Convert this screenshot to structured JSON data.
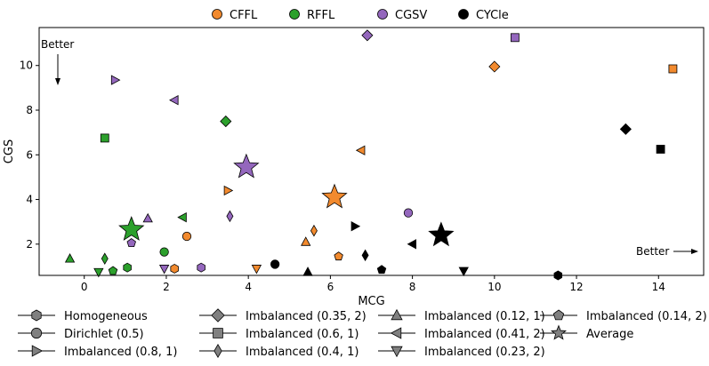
{
  "chart_data": {
    "type": "scatter",
    "xlabel": "MCG",
    "ylabel": "CGS",
    "xlim": [
      -1.1,
      15.1
    ],
    "ylim": [
      0.6,
      11.7
    ],
    "xticks": [
      0,
      2,
      4,
      6,
      8,
      10,
      12,
      14
    ],
    "yticks": [
      2,
      4,
      6,
      8,
      10
    ],
    "grid": false,
    "colors": {
      "CFFL": "#f28a2e",
      "RFFL": "#2ca02c",
      "CGSV": "#9467bd",
      "CYCle": "#000000",
      "Legend_marker": "#808080"
    },
    "method_legend": {
      "placement": "top",
      "entries": [
        {
          "name": "CFFL",
          "color": "#f28a2e"
        },
        {
          "name": "RFFL",
          "color": "#2ca02c"
        },
        {
          "name": "CGSV",
          "color": "#9467bd"
        },
        {
          "name": "CYCle",
          "color": "#000000"
        }
      ]
    },
    "setting_legend": {
      "placement": "bottom",
      "entries": [
        {
          "label": "Homogeneous",
          "marker": "hexagon"
        },
        {
          "label": "Imbalanced (0.35, 2)",
          "marker": "diamond"
        },
        {
          "label": "Imbalanced (0.12, 1)",
          "marker": "triangle-up"
        },
        {
          "label": "Imbalanced (0.14, 2)",
          "marker": "pentagon"
        },
        {
          "label": "Dirichlet (0.5)",
          "marker": "circle"
        },
        {
          "label": "Imbalanced (0.6, 1)",
          "marker": "square"
        },
        {
          "label": "Imbalanced (0.41, 2)",
          "marker": "triangle-left"
        },
        {
          "label": "Average",
          "marker": "star"
        },
        {
          "label": "Imbalanced (0.8, 1)",
          "marker": "triangle-right"
        },
        {
          "label": "Imbalanced (0.4, 1)",
          "marker": "thin-diamond"
        },
        {
          "label": "Imbalanced (0.23, 2)",
          "marker": "triangle-down"
        }
      ]
    },
    "annotations": [
      {
        "text": "Better",
        "placement": "top-left",
        "arrow": "down"
      },
      {
        "text": "Better",
        "placement": "bottom-right",
        "arrow": "right"
      }
    ],
    "series": [
      {
        "name": "CFFL",
        "points": [
          {
            "marker": "hexagon",
            "x": 2.2,
            "y": 0.9
          },
          {
            "marker": "circle",
            "x": 2.5,
            "y": 2.35
          },
          {
            "marker": "triangle-right",
            "x": 3.5,
            "y": 4.4
          },
          {
            "marker": "triangle-down",
            "x": 4.2,
            "y": 0.9
          },
          {
            "marker": "triangle-up",
            "x": 5.4,
            "y": 2.1
          },
          {
            "marker": "thin-diamond",
            "x": 5.6,
            "y": 2.6
          },
          {
            "marker": "pentagon",
            "x": 6.2,
            "y": 1.45
          },
          {
            "marker": "triangle-left",
            "x": 6.75,
            "y": 6.2
          },
          {
            "marker": "diamond",
            "x": 10.0,
            "y": 9.95
          },
          {
            "marker": "square",
            "x": 14.35,
            "y": 9.85
          },
          {
            "marker": "star",
            "x": 6.1,
            "y": 4.1
          }
        ]
      },
      {
        "name": "RFFL",
        "points": [
          {
            "marker": "triangle-up",
            "x": -0.35,
            "y": 1.35
          },
          {
            "marker": "triangle-down",
            "x": 0.35,
            "y": 0.75
          },
          {
            "marker": "thin-diamond",
            "x": 0.5,
            "y": 1.35
          },
          {
            "marker": "pentagon",
            "x": 0.7,
            "y": 0.8
          },
          {
            "marker": "hexagon",
            "x": 1.05,
            "y": 0.95
          },
          {
            "marker": "circle",
            "x": 1.95,
            "y": 1.65
          },
          {
            "marker": "triangle-left",
            "x": 2.4,
            "y": 3.2
          },
          {
            "marker": "diamond",
            "x": 3.45,
            "y": 7.5
          },
          {
            "marker": "square",
            "x": 0.5,
            "y": 6.75
          },
          {
            "marker": "star",
            "x": 1.15,
            "y": 2.65
          }
        ]
      },
      {
        "name": "CGSV",
        "points": [
          {
            "marker": "pentagon",
            "x": 1.15,
            "y": 2.05
          },
          {
            "marker": "triangle-up",
            "x": 1.55,
            "y": 3.15
          },
          {
            "marker": "triangle-down",
            "x": 1.95,
            "y": 0.9
          },
          {
            "marker": "hexagon",
            "x": 2.85,
            "y": 0.95
          },
          {
            "marker": "thin-diamond",
            "x": 3.55,
            "y": 3.25
          },
          {
            "marker": "triangle-right",
            "x": 0.75,
            "y": 9.35
          },
          {
            "marker": "triangle-left",
            "x": 2.2,
            "y": 8.45
          },
          {
            "marker": "circle",
            "x": 7.9,
            "y": 3.4
          },
          {
            "marker": "diamond",
            "x": 6.9,
            "y": 11.35
          },
          {
            "marker": "square",
            "x": 10.5,
            "y": 11.25
          },
          {
            "marker": "star",
            "x": 3.95,
            "y": 5.45
          }
        ]
      },
      {
        "name": "CYCle",
        "points": [
          {
            "marker": "circle",
            "x": 4.65,
            "y": 1.1
          },
          {
            "marker": "triangle-up",
            "x": 5.45,
            "y": 0.75
          },
          {
            "marker": "triangle-right",
            "x": 6.6,
            "y": 2.8
          },
          {
            "marker": "thin-diamond",
            "x": 6.85,
            "y": 1.5
          },
          {
            "marker": "pentagon",
            "x": 7.25,
            "y": 0.85
          },
          {
            "marker": "triangle-left",
            "x": 8.0,
            "y": 2.0
          },
          {
            "marker": "triangle-down",
            "x": 9.25,
            "y": 0.8
          },
          {
            "marker": "hexagon",
            "x": 11.55,
            "y": 0.6
          },
          {
            "marker": "diamond",
            "x": 13.2,
            "y": 7.15
          },
          {
            "marker": "square",
            "x": 14.05,
            "y": 6.25
          },
          {
            "marker": "star",
            "x": 8.7,
            "y": 2.4
          }
        ]
      }
    ]
  }
}
